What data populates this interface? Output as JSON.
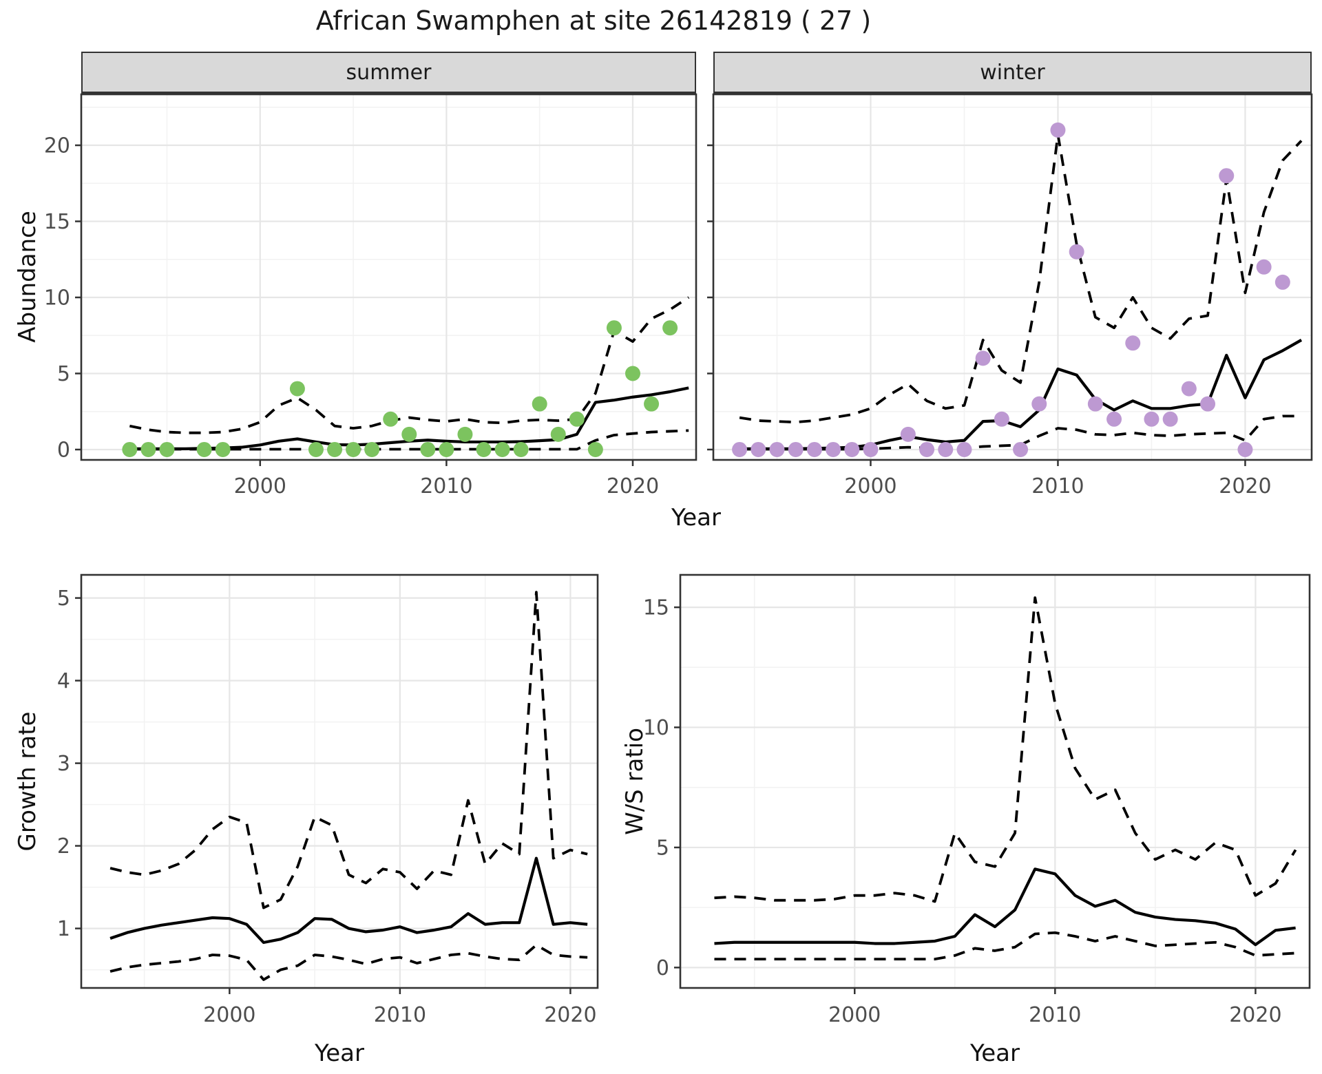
{
  "title": "African Swamphen at site 26142819 ( 27 )",
  "labels": {
    "year": "Year",
    "abundance": "Abundance",
    "growth_rate": "Growth rate",
    "ws_ratio": "W/S ratio"
  },
  "facets": {
    "summer": "summer",
    "winter": "winter"
  },
  "colors": {
    "summer_point": "#7cc35f",
    "winter_point": "#bd99d2",
    "line": "#000000",
    "strip_bg": "#d9d9d9",
    "panel_border": "#333333",
    "grid_major": "#e6e6e6",
    "grid_minor": "#f2f2f2",
    "tick_text": "#4d4d4d"
  },
  "chart_data": [
    {
      "id": "abundance-summer",
      "type": "line",
      "facet_label": "summer",
      "xlabel": "Year",
      "ylabel": "Abundance",
      "xlim": [
        1990.4,
        2023.4
      ],
      "ylim": [
        -0.68,
        23.35
      ],
      "xticks": [
        2000,
        2010,
        2020
      ],
      "yticks": [
        0,
        5,
        10,
        15,
        20
      ],
      "show_ytick_labels": true,
      "line_years": [
        1993,
        1994,
        1995,
        1996,
        1997,
        1998,
        1999,
        2000,
        2001,
        2002,
        2003,
        2004,
        2005,
        2006,
        2007,
        2008,
        2009,
        2010,
        2011,
        2012,
        2013,
        2014,
        2015,
        2016,
        2017,
        2018,
        2019,
        2020,
        2021,
        2022,
        2023
      ],
      "series": [
        {
          "name": "mean",
          "style": "solid",
          "values": [
            0.05,
            0.05,
            0.05,
            0.05,
            0.08,
            0.1,
            0.15,
            0.3,
            0.55,
            0.7,
            0.5,
            0.32,
            0.3,
            0.35,
            0.45,
            0.55,
            0.62,
            0.55,
            0.5,
            0.5,
            0.5,
            0.52,
            0.58,
            0.65,
            1.0,
            3.1,
            3.25,
            3.45,
            3.6,
            3.8,
            4.05
          ]
        },
        {
          "name": "upper_ci",
          "style": "dashed",
          "values": [
            1.55,
            1.3,
            1.15,
            1.1,
            1.1,
            1.15,
            1.35,
            1.8,
            2.9,
            3.4,
            2.6,
            1.55,
            1.4,
            1.55,
            1.9,
            2.1,
            1.95,
            1.85,
            2.0,
            1.8,
            1.75,
            1.9,
            1.95,
            1.9,
            2.0,
            3.7,
            7.8,
            7.1,
            8.6,
            9.2,
            10.0
          ]
        },
        {
          "name": "lower_ci",
          "style": "dashed",
          "values": [
            0.02,
            0.02,
            0.02,
            0.02,
            0.02,
            0.02,
            0.02,
            0.02,
            0.02,
            0.02,
            0.02,
            0.02,
            0.02,
            0.02,
            0.02,
            0.02,
            0.02,
            0.02,
            0.02,
            0.02,
            0.02,
            0.02,
            0.02,
            0.02,
            0.02,
            0.6,
            0.95,
            1.05,
            1.15,
            1.2,
            1.25
          ]
        }
      ],
      "points": {
        "color": "#7cc35f",
        "x": [
          1993,
          1994,
          1995,
          1997,
          1998,
          2002,
          2003,
          2004,
          2005,
          2006,
          2007,
          2008,
          2009,
          2010,
          2011,
          2012,
          2013,
          2014,
          2015,
          2016,
          2017,
          2018,
          2019,
          2020,
          2021,
          2022
        ],
        "y": [
          0,
          0,
          0,
          0,
          0,
          4,
          0,
          0,
          0,
          0,
          2,
          1,
          0,
          0,
          1,
          0,
          0,
          0,
          3,
          1,
          2,
          0,
          8,
          5,
          3,
          8
        ]
      }
    },
    {
      "id": "abundance-winter",
      "type": "line",
      "facet_label": "winter",
      "xlabel": "Year",
      "ylabel": "Abundance",
      "xlim": [
        1991.6,
        2023.55
      ],
      "ylim": [
        -0.68,
        23.35
      ],
      "xticks": [
        2000,
        2010,
        2020
      ],
      "yticks": [
        0,
        5,
        10,
        15,
        20
      ],
      "show_ytick_labels": false,
      "line_years": [
        1993,
        1994,
        1995,
        1996,
        1997,
        1998,
        1999,
        2000,
        2001,
        2002,
        2003,
        2004,
        2005,
        2006,
        2007,
        2008,
        2009,
        2010,
        2011,
        2012,
        2013,
        2014,
        2015,
        2016,
        2017,
        2018,
        2019,
        2020,
        2021,
        2022,
        2023
      ],
      "series": [
        {
          "name": "mean",
          "style": "solid",
          "values": [
            0.05,
            0.05,
            0.05,
            0.05,
            0.08,
            0.1,
            0.15,
            0.3,
            0.6,
            0.85,
            0.65,
            0.5,
            0.6,
            1.85,
            1.9,
            1.5,
            2.6,
            5.3,
            4.9,
            3.3,
            2.6,
            3.2,
            2.7,
            2.7,
            2.9,
            3.0,
            6.2,
            3.4,
            5.9,
            6.5,
            7.2
          ]
        },
        {
          "name": "upper_ci",
          "style": "dashed",
          "values": [
            2.1,
            1.9,
            1.85,
            1.8,
            1.9,
            2.1,
            2.3,
            2.7,
            3.6,
            4.3,
            3.2,
            2.7,
            2.9,
            7.2,
            5.2,
            4.4,
            11.0,
            20.7,
            13.5,
            8.7,
            8.0,
            10.0,
            8.0,
            7.3,
            8.6,
            8.8,
            17.8,
            10.3,
            15.6,
            19.0,
            20.3
          ]
        },
        {
          "name": "lower_ci",
          "style": "dashed",
          "values": [
            0.02,
            0.02,
            0.02,
            0.02,
            0.02,
            0.02,
            0.02,
            0.05,
            0.1,
            0.15,
            0.1,
            0.05,
            0.1,
            0.2,
            0.25,
            0.3,
            0.9,
            1.4,
            1.3,
            1.0,
            0.95,
            1.1,
            0.95,
            0.9,
            1.0,
            1.05,
            1.1,
            0.6,
            2.0,
            2.2,
            2.2
          ]
        }
      ],
      "points": {
        "color": "#bd99d2",
        "x": [
          1993,
          1994,
          1995,
          1996,
          1997,
          1998,
          1999,
          2000,
          2002,
          2003,
          2004,
          2005,
          2006,
          2007,
          2008,
          2009,
          2010,
          2011,
          2012,
          2013,
          2014,
          2015,
          2016,
          2017,
          2018,
          2019,
          2020,
          2021,
          2022
        ],
        "y": [
          0,
          0,
          0,
          0,
          0,
          0,
          0,
          0,
          1,
          0,
          0,
          0,
          6,
          2,
          0,
          3,
          21,
          13,
          3,
          2,
          7,
          2,
          2,
          4,
          3,
          18,
          0,
          12,
          11
        ]
      }
    },
    {
      "id": "growth-rate",
      "type": "line",
      "facet_label": "",
      "xlabel": "Year",
      "ylabel": "Growth rate",
      "xlim": [
        1991.3,
        2021.6
      ],
      "ylim": [
        0.28,
        5.28
      ],
      "xticks": [
        2000,
        2010,
        2020
      ],
      "yticks": [
        1,
        2,
        3,
        4,
        5
      ],
      "show_ytick_labels": true,
      "line_years": [
        1993,
        1994,
        1995,
        1996,
        1997,
        1998,
        1999,
        2000,
        2001,
        2002,
        2003,
        2004,
        2005,
        2006,
        2007,
        2008,
        2009,
        2010,
        2011,
        2012,
        2013,
        2014,
        2015,
        2016,
        2017,
        2018,
        2019,
        2020,
        2021
      ],
      "series": [
        {
          "name": "mean",
          "style": "solid",
          "values": [
            0.88,
            0.95,
            1.0,
            1.04,
            1.07,
            1.1,
            1.13,
            1.12,
            1.05,
            0.83,
            0.87,
            0.95,
            1.12,
            1.11,
            1.0,
            0.96,
            0.98,
            1.02,
            0.95,
            0.98,
            1.02,
            1.18,
            1.05,
            1.07,
            1.07,
            1.85,
            1.05,
            1.07,
            1.05
          ]
        },
        {
          "name": "upper_ci",
          "style": "dashed",
          "values": [
            1.73,
            1.68,
            1.65,
            1.7,
            1.78,
            1.95,
            2.2,
            2.35,
            2.28,
            1.25,
            1.35,
            1.75,
            2.35,
            2.25,
            1.65,
            1.55,
            1.72,
            1.68,
            1.48,
            1.7,
            1.65,
            2.55,
            1.78,
            2.03,
            1.9,
            5.07,
            1.85,
            1.95,
            1.9
          ]
        },
        {
          "name": "lower_ci",
          "style": "dashed",
          "values": [
            0.48,
            0.53,
            0.56,
            0.58,
            0.6,
            0.63,
            0.68,
            0.67,
            0.62,
            0.38,
            0.5,
            0.55,
            0.68,
            0.66,
            0.62,
            0.57,
            0.63,
            0.65,
            0.58,
            0.63,
            0.68,
            0.7,
            0.66,
            0.63,
            0.62,
            0.8,
            0.68,
            0.66,
            0.65
          ]
        }
      ],
      "points": {
        "color": "",
        "x": [],
        "y": []
      }
    },
    {
      "id": "ws-ratio",
      "type": "line",
      "facet_label": "",
      "xlabel": "Year",
      "ylabel": "W/S ratio",
      "xlim": [
        1991.3,
        2022.7
      ],
      "ylim": [
        -0.85,
        16.35
      ],
      "xticks": [
        2000,
        2010,
        2020
      ],
      "yticks": [
        0,
        5,
        10,
        15
      ],
      "show_ytick_labels": true,
      "line_years": [
        1993,
        1994,
        1995,
        1996,
        1997,
        1998,
        1999,
        2000,
        2001,
        2002,
        2003,
        2004,
        2005,
        2006,
        2007,
        2008,
        2009,
        2010,
        2011,
        2012,
        2013,
        2014,
        2015,
        2016,
        2017,
        2018,
        2019,
        2020,
        2021,
        2022
      ],
      "series": [
        {
          "name": "mean",
          "style": "solid",
          "values": [
            1.0,
            1.05,
            1.05,
            1.05,
            1.05,
            1.05,
            1.05,
            1.05,
            1.0,
            1.0,
            1.05,
            1.1,
            1.3,
            2.2,
            1.7,
            2.4,
            4.1,
            3.9,
            3.0,
            2.55,
            2.8,
            2.3,
            2.1,
            2.0,
            1.95,
            1.85,
            1.6,
            0.95,
            1.55,
            1.65
          ]
        },
        {
          "name": "upper_ci",
          "style": "dashed",
          "values": [
            2.9,
            2.95,
            2.9,
            2.8,
            2.8,
            2.8,
            2.85,
            3.0,
            3.0,
            3.1,
            3.0,
            2.75,
            5.6,
            4.4,
            4.2,
            5.6,
            15.4,
            11.0,
            8.3,
            7.0,
            7.4,
            5.6,
            4.5,
            4.9,
            4.5,
            5.2,
            4.9,
            3.0,
            3.5,
            4.9
          ]
        },
        {
          "name": "lower_ci",
          "style": "dashed",
          "values": [
            0.35,
            0.35,
            0.35,
            0.35,
            0.35,
            0.35,
            0.35,
            0.35,
            0.35,
            0.35,
            0.35,
            0.35,
            0.5,
            0.8,
            0.7,
            0.85,
            1.4,
            1.45,
            1.3,
            1.1,
            1.3,
            1.1,
            0.9,
            0.95,
            1.0,
            1.05,
            0.85,
            0.5,
            0.55,
            0.6
          ]
        }
      ],
      "points": {
        "color": "",
        "x": [],
        "y": []
      }
    }
  ]
}
